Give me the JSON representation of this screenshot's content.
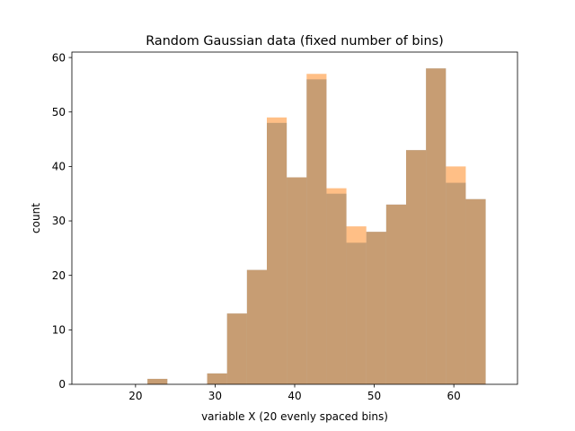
{
  "chart_data": {
    "type": "bar",
    "title": "Random Gaussian data (fixed number of bins)",
    "xlabel": "variable X (20 evenly spaced bins)",
    "ylabel": "count",
    "xlim": [
      12,
      68
    ],
    "ylim": [
      0,
      61
    ],
    "xticks": [
      20,
      30,
      40,
      50,
      60
    ],
    "yticks": [
      0,
      10,
      20,
      30,
      40,
      50,
      60
    ],
    "bin_edges": [
      14,
      16.5,
      19,
      21.5,
      24,
      26.5,
      29,
      31.5,
      34,
      36.5,
      39,
      41.5,
      44,
      46.5,
      49,
      51.5,
      54,
      56.5,
      59,
      61.5,
      64
    ],
    "series": [
      {
        "color": "#1f77b4",
        "values": [
          0,
          0,
          0,
          1,
          0,
          0,
          2,
          13,
          21,
          48,
          38,
          56,
          35,
          26,
          28,
          33,
          43,
          58,
          37,
          34
        ]
      },
      {
        "color": "#ff7f0e",
        "values": [
          0,
          0,
          0,
          1,
          0,
          0,
          2,
          13,
          21,
          49,
          38,
          57,
          36,
          29,
          28,
          33,
          43,
          58,
          40,
          34
        ]
      }
    ],
    "grid": false,
    "legend": "none"
  }
}
